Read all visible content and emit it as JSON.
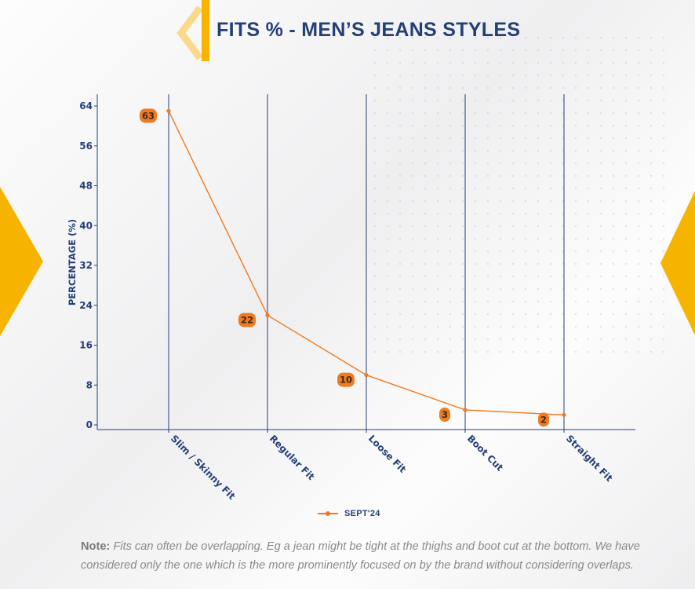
{
  "page": {
    "title": "FITS % - MEN’S JEANS STYLES"
  },
  "chart_data": {
    "type": "line",
    "categories": [
      "Slim / Skinny Fit",
      "Regular Fit",
      "Loose Fit",
      "Boot Cut",
      "Straight Fit"
    ],
    "series": [
      {
        "name": "SEPT'24",
        "values": [
          63,
          22,
          10,
          3,
          2
        ],
        "color": "#f07a20"
      }
    ],
    "ylabel": "PERCENTAGE (%)",
    "xlabel": "",
    "ylim": [
      0,
      64
    ],
    "yticks": [
      0,
      8,
      16,
      24,
      32,
      40,
      48,
      56,
      64
    ],
    "grid": "vertical",
    "legend": "bottom-center",
    "axis_color": "#243f78",
    "label_bg": "#f07a20"
  },
  "note": {
    "label": "Note:",
    "text": "Fits can often be overlapping. Eg a jean might be tight at the thighs and boot cut at the bottom. We have considered only the one which is the more prominently focused on by the brand without considering overlaps."
  }
}
